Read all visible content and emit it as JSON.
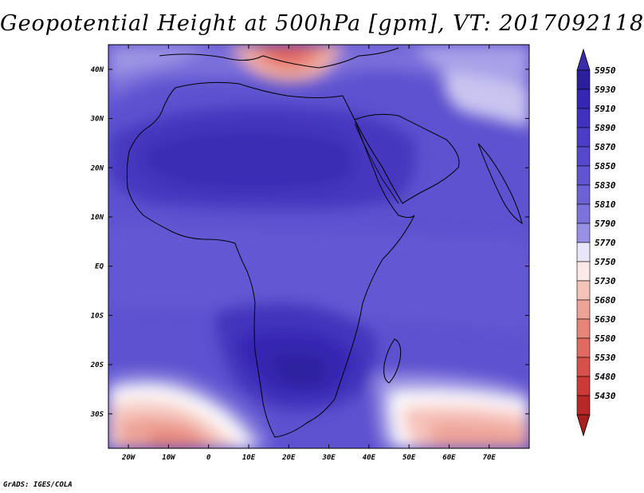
{
  "title": "Geopotential Height at 500hPa [gpm], VT: 2017092118",
  "credit": "GrADS: IGES/COLA",
  "map": {
    "region": "Africa and Arabian Peninsula",
    "lon_range": [
      -25,
      80
    ],
    "lat_range": [
      -37,
      45
    ],
    "lat_labels": [
      "40N",
      "30N",
      "20N",
      "10N",
      "EQ",
      "10S",
      "20S",
      "30S"
    ],
    "lat_values": [
      40,
      30,
      20,
      10,
      0,
      -10,
      -20,
      -30
    ],
    "lon_labels": [
      "20W",
      "10W",
      "0",
      "10E",
      "20E",
      "30E",
      "40E",
      "50E",
      "60E",
      "70E"
    ],
    "lon_values": [
      -20,
      -10,
      0,
      10,
      20,
      30,
      40,
      50,
      60,
      70
    ]
  },
  "colorbar": {
    "levels": [
      "5950",
      "5930",
      "5910",
      "5890",
      "5870",
      "5850",
      "5830",
      "5810",
      "5790",
      "5770",
      "5750",
      "5730",
      "5680",
      "5630",
      "5580",
      "5530",
      "5480",
      "5430"
    ],
    "colors": [
      "#2a1f9c",
      "#3527b3",
      "#4032bf",
      "#4a3ec7",
      "#5549cc",
      "#6055d1",
      "#6c62d6",
      "#7b72db",
      "#9890e4",
      "#e8e6f8",
      "#fdeae6",
      "#f6c3bb",
      "#eea397",
      "#e7857a",
      "#e06a62",
      "#d8504c",
      "#cc3a38",
      "#b82828"
    ],
    "arrow_top": "#3a2da8",
    "arrow_bottom": "#a82020"
  }
}
